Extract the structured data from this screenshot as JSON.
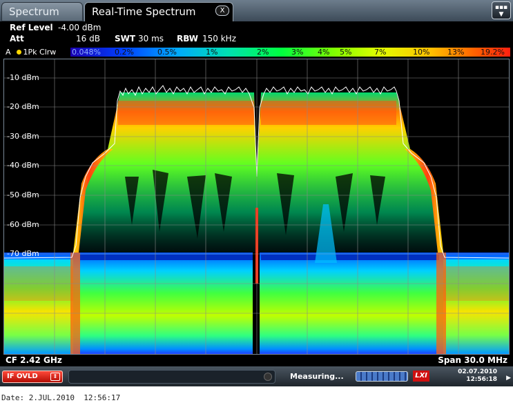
{
  "tabs": [
    {
      "label": "Spectrum",
      "active": false
    },
    {
      "label": "Real-Time Spectrum",
      "active": true,
      "close_label": "X"
    }
  ],
  "menu_icon": "menu-icon",
  "settings": {
    "ref_level_label": "Ref Level",
    "ref_level_value": "-4.00 dBm",
    "att_label": "Att",
    "att_value": "16 dB",
    "swt_label": "SWT",
    "swt_value": "30 ms",
    "rbw_label": "RBW",
    "rbw_value": "150 kHz"
  },
  "trace": {
    "window": "A",
    "label": "1Pk Clrw"
  },
  "persistence_scale": [
    "0.048%",
    "0.2%",
    "0.5%",
    "1%",
    "2%",
    "3%",
    "4%",
    "5%",
    "7%",
    "10%",
    "13%",
    "19.2%"
  ],
  "y_ticks": [
    "-10 dBm",
    "-20 dBm",
    "-30 dBm",
    "-40 dBm",
    "-50 dBm",
    "-60 dBm",
    "-70 dBm"
  ],
  "center_freq": "CF 2.42 GHz",
  "span": "Span 30.0 MHz",
  "status": {
    "ovld": "IF OVLD",
    "measuring": "Measuring...",
    "lxi": "LXI",
    "date": "02.07.2010",
    "time": "12:56:18"
  },
  "footer": "Date: 2.JUL.2010  12:56:17",
  "colors": {
    "background": "#000000",
    "hot": "#ff3010",
    "mid": "#ffe000",
    "cool": "#00ff60",
    "cold": "#0050ff",
    "trace": "#ffffff"
  }
}
